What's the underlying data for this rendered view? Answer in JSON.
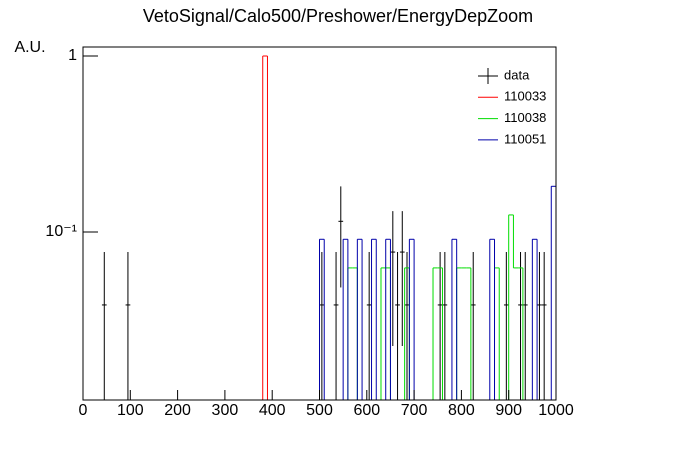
{
  "chart_data": {
    "type": "histogram",
    "title": "VetoSignal/Calo500/Preshower/EnergyDepZoom",
    "y_label": "A.U.",
    "log_y": true,
    "xlim": [
      0,
      1000
    ],
    "ylim": [
      0.0111,
      1.125
    ],
    "xticks": [
      0,
      100,
      200,
      300,
      400,
      500,
      600,
      700,
      800,
      900,
      1000
    ],
    "yticks": [
      {
        "value": 0.1,
        "label": "10⁻¹"
      },
      1
    ],
    "legend": "top-right",
    "bins": [
      0,
      10,
      20,
      30,
      40,
      50,
      60,
      70,
      80,
      90,
      100,
      110,
      120,
      130,
      140,
      150,
      160,
      170,
      180,
      190,
      200,
      210,
      220,
      230,
      240,
      250,
      260,
      270,
      280,
      290,
      300,
      310,
      320,
      330,
      340,
      350,
      360,
      370,
      380,
      390,
      400,
      410,
      420,
      430,
      440,
      450,
      460,
      470,
      480,
      490,
      500,
      510,
      520,
      530,
      540,
      550,
      560,
      570,
      580,
      590,
      600,
      610,
      620,
      630,
      640,
      650,
      660,
      670,
      680,
      690,
      700,
      710,
      720,
      730,
      740,
      750,
      760,
      770,
      780,
      790,
      800,
      810,
      820,
      830,
      840,
      850,
      860,
      870,
      880,
      890,
      900,
      910,
      920,
      930,
      940,
      950,
      960,
      970,
      980,
      990,
      1000
    ],
    "series": [
      {
        "name": "data",
        "color": "#000000",
        "style": "points",
        "values": [
          null,
          null,
          null,
          null,
          0.0385,
          null,
          null,
          null,
          null,
          0.0385,
          null,
          null,
          null,
          null,
          null,
          null,
          null,
          null,
          null,
          null,
          null,
          null,
          null,
          null,
          null,
          null,
          null,
          null,
          null,
          null,
          null,
          null,
          null,
          null,
          null,
          null,
          null,
          null,
          null,
          null,
          null,
          null,
          null,
          null,
          null,
          null,
          null,
          null,
          null,
          null,
          0.0385,
          null,
          null,
          0.0385,
          0.115,
          null,
          null,
          null,
          null,
          null,
          0.0385,
          null,
          null,
          null,
          null,
          0.0769,
          0.0385,
          0.0769,
          0.0385,
          null,
          null,
          null,
          null,
          null,
          null,
          0.0385,
          0.0385,
          null,
          null,
          null,
          null,
          null,
          0.0385,
          null,
          null,
          null,
          null,
          null,
          null,
          0.0385,
          null,
          null,
          0.0385,
          0.0385,
          null,
          null,
          0.0385,
          0.0385,
          null,
          null
        ],
        "errors": [
          null,
          null,
          null,
          null,
          0.0385,
          null,
          null,
          null,
          null,
          0.0385,
          null,
          null,
          null,
          null,
          null,
          null,
          null,
          null,
          null,
          null,
          null,
          null,
          null,
          null,
          null,
          null,
          null,
          null,
          null,
          null,
          null,
          null,
          null,
          null,
          null,
          null,
          null,
          null,
          null,
          null,
          null,
          null,
          null,
          null,
          null,
          null,
          null,
          null,
          null,
          null,
          0.0385,
          null,
          null,
          0.0385,
          0.0666,
          null,
          null,
          null,
          null,
          null,
          0.0385,
          null,
          null,
          null,
          null,
          0.0544,
          0.0385,
          0.0544,
          0.0385,
          null,
          null,
          null,
          null,
          null,
          null,
          0.0385,
          0.0385,
          null,
          null,
          null,
          null,
          null,
          0.0385,
          null,
          null,
          null,
          null,
          null,
          null,
          0.0385,
          null,
          null,
          0.0385,
          0.0385,
          null,
          null,
          0.0385,
          0.0385,
          null,
          null
        ]
      },
      {
        "name": "110033",
        "color": "#ff0000",
        "style": "step",
        "values": [
          0,
          0,
          0,
          0,
          0,
          0,
          0,
          0,
          0,
          0,
          0,
          0,
          0,
          0,
          0,
          0,
          0,
          0,
          0,
          0,
          0,
          0,
          0,
          0,
          0,
          0,
          0,
          0,
          0,
          0,
          0,
          0,
          0,
          0,
          0,
          0,
          0,
          0,
          1,
          0,
          0,
          0,
          0,
          0,
          0,
          0,
          0,
          0,
          0,
          0,
          0,
          0,
          0,
          0,
          0,
          0,
          0,
          0,
          0,
          0,
          0,
          0,
          0,
          0,
          0,
          0,
          0,
          0,
          0,
          0,
          0,
          0,
          0,
          0,
          0,
          0,
          0,
          0,
          0,
          0,
          0,
          0,
          0,
          0,
          0,
          0,
          0,
          0,
          0,
          0,
          0,
          0,
          0,
          0,
          0,
          0,
          0,
          0,
          0,
          0
        ]
      },
      {
        "name": "110038",
        "color": "#00dd00",
        "style": "step",
        "values": [
          0,
          0,
          0,
          0,
          0,
          0,
          0,
          0,
          0,
          0,
          0,
          0,
          0,
          0,
          0,
          0,
          0,
          0,
          0,
          0,
          0,
          0,
          0,
          0,
          0,
          0,
          0,
          0,
          0,
          0,
          0,
          0,
          0,
          0,
          0,
          0,
          0,
          0,
          0,
          0,
          0,
          0,
          0,
          0,
          0,
          0,
          0,
          0,
          0,
          0,
          0,
          0,
          0,
          0,
          0,
          0,
          0.0625,
          0.0625,
          0,
          0,
          0,
          0,
          0,
          0.0625,
          0.0625,
          0,
          0,
          0,
          0.0625,
          0,
          0,
          0,
          0,
          0,
          0.0625,
          0.0625,
          0,
          0,
          0,
          0.0625,
          0.0625,
          0.0625,
          0,
          0,
          0,
          0,
          0,
          0.0625,
          0,
          0,
          0.125,
          0.0625,
          0.0625,
          0,
          0,
          0,
          0,
          0,
          0,
          0
        ]
      },
      {
        "name": "110051",
        "color": "#0000aa",
        "style": "step",
        "values": [
          0,
          0,
          0,
          0,
          0,
          0,
          0,
          0,
          0,
          0,
          0,
          0,
          0,
          0,
          0,
          0,
          0,
          0,
          0,
          0,
          0,
          0,
          0,
          0,
          0,
          0,
          0,
          0,
          0,
          0,
          0,
          0,
          0,
          0,
          0,
          0,
          0,
          0,
          0,
          0,
          0,
          0,
          0,
          0,
          0,
          0,
          0,
          0,
          0,
          0,
          0.0909,
          0,
          0,
          0,
          0,
          0.0909,
          0,
          0,
          0.0909,
          0,
          0,
          0.0909,
          0,
          0,
          0.0909,
          0,
          0,
          0,
          0,
          0.0909,
          0,
          0,
          0,
          0,
          0,
          0,
          0,
          0,
          0.0909,
          0,
          0,
          0,
          0,
          0,
          0,
          0,
          0.0909,
          0,
          0,
          0,
          0,
          0,
          0,
          0,
          0,
          0.0909,
          0,
          0,
          0,
          0.1818
        ]
      }
    ]
  }
}
